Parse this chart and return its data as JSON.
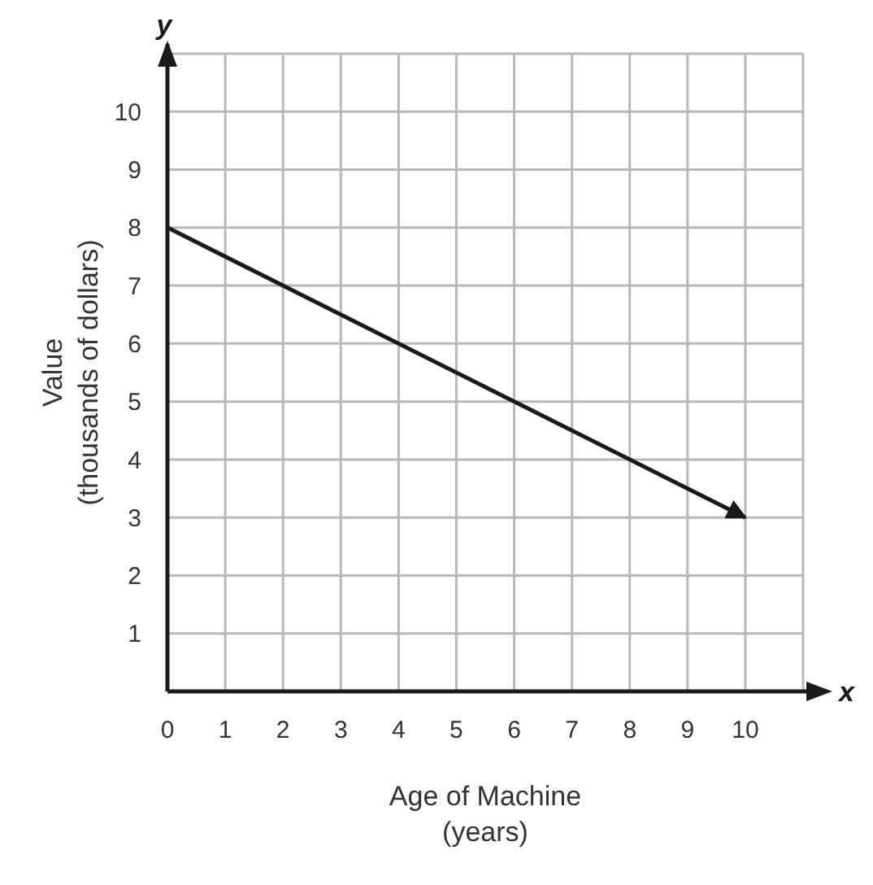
{
  "chart_data": {
    "type": "line",
    "xlabel": "Age of Machine\n(years)",
    "ylabel": "Value\n(thousands of dollars)",
    "annotations": [
      "x",
      "y"
    ],
    "x": [
      0,
      10
    ],
    "series": [
      {
        "color": "#1a1a1a",
        "values": [
          8,
          3
        ]
      }
    ],
    "xlim": [
      0,
      11
    ],
    "xticks": [
      0,
      1,
      2,
      3,
      4,
      5,
      6,
      7,
      8,
      9,
      10
    ],
    "ylim": [
      0,
      11
    ],
    "yticks": [
      1,
      2,
      3,
      4,
      5,
      6,
      7,
      8,
      9,
      10
    ],
    "grid": true,
    "legend": false,
    "marker": "none",
    "line_style": "solid"
  }
}
